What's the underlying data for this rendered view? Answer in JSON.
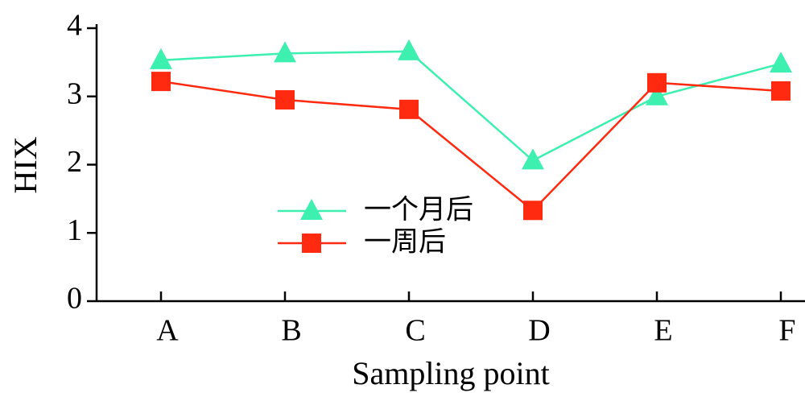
{
  "chart_data": {
    "type": "line",
    "categories": [
      "A",
      "B",
      "C",
      "D",
      "E",
      "F"
    ],
    "series": [
      {
        "name": "一个月后",
        "color": "#3df0b0",
        "marker": "triangle",
        "values": [
          3.53,
          3.63,
          3.66,
          2.06,
          3.0,
          3.48
        ]
      },
      {
        "name": "一周后",
        "color": "#ff2a10",
        "marker": "square",
        "values": [
          3.22,
          2.95,
          2.81,
          1.33,
          3.2,
          3.08
        ]
      }
    ],
    "x_label": "Sampling point",
    "y_label": "HIX",
    "ylim": [
      0,
      4
    ],
    "yticks": [
      0,
      1,
      2,
      3,
      4
    ]
  }
}
